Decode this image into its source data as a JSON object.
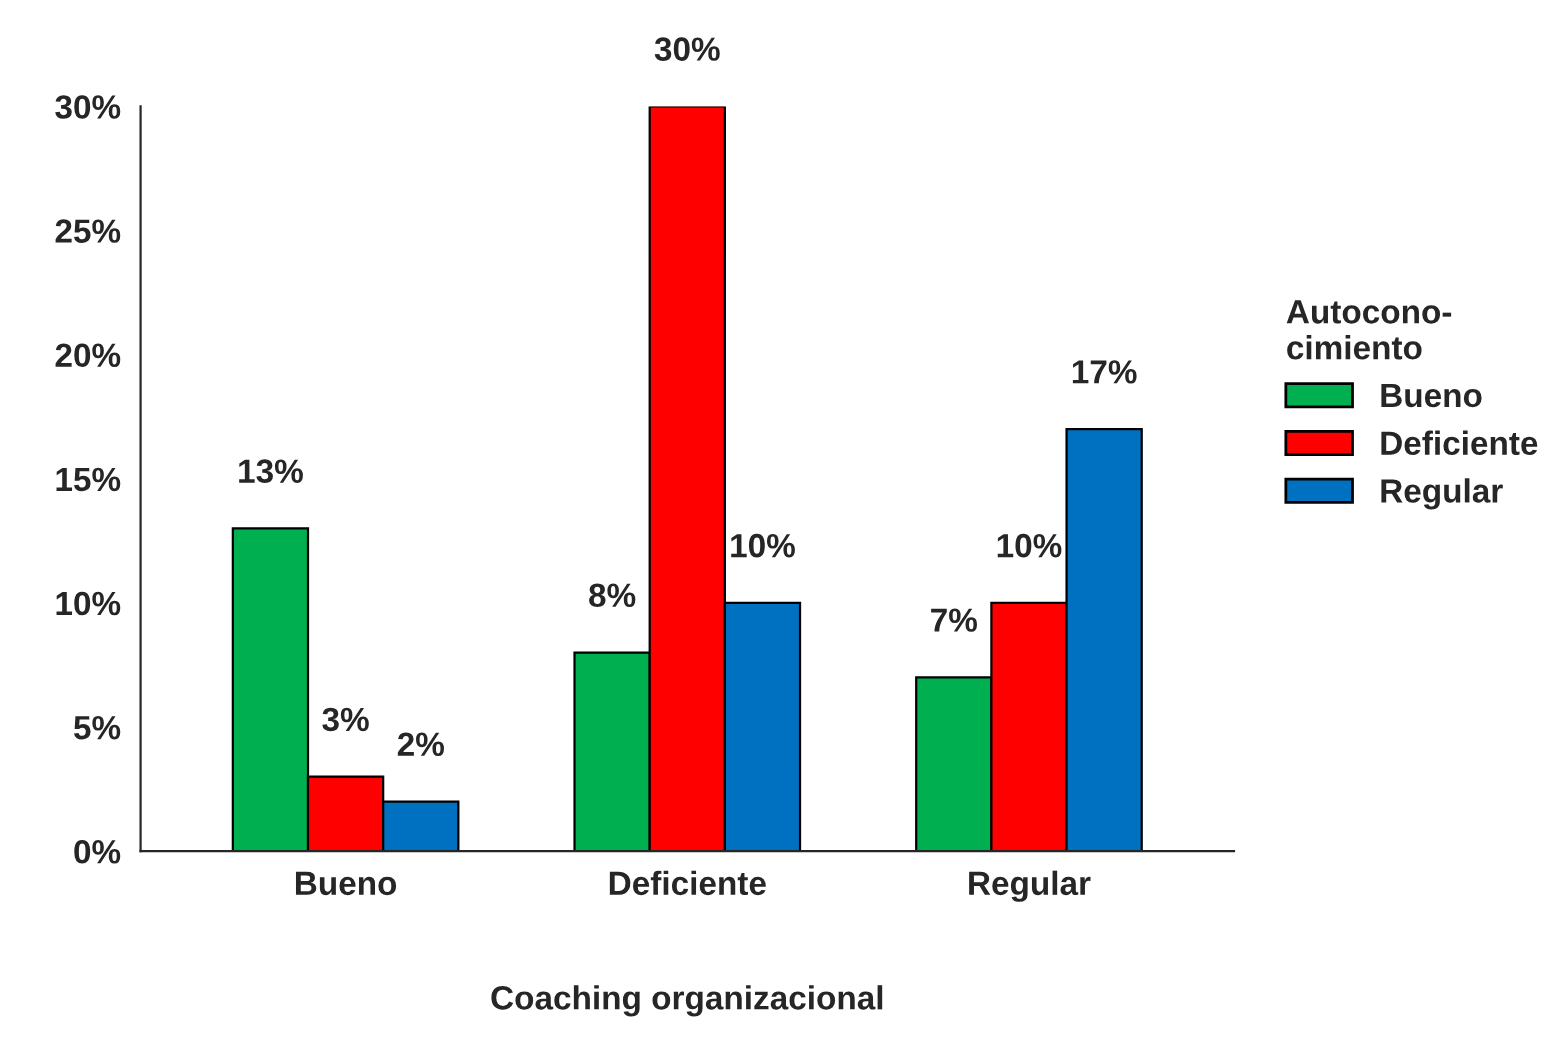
{
  "chart_data": {
    "type": "bar",
    "xlabel": "Coaching organizacional",
    "legend_title": "Autocono-\ncimiento",
    "categories": [
      "Bueno",
      "Deficiente",
      "Regular"
    ],
    "series": [
      {
        "name": "Bueno",
        "color": "#00b050",
        "values": [
          13,
          8,
          7
        ],
        "value_labels": [
          "13%",
          "8%",
          "7%"
        ]
      },
      {
        "name": "Deficiente",
        "color": "#ff0000",
        "values": [
          3,
          30,
          10
        ],
        "value_labels": [
          "3%",
          "30%",
          "10%"
        ]
      },
      {
        "name": "Regular",
        "color": "#0070c0",
        "values": [
          2,
          10,
          17
        ],
        "value_labels": [
          "2%",
          "10%",
          "17%"
        ]
      }
    ],
    "ylim": [
      0,
      30
    ],
    "yticks": [
      {
        "value": 0,
        "label": "0%"
      },
      {
        "value": 5,
        "label": "5%"
      },
      {
        "value": 10,
        "label": "10%"
      },
      {
        "value": 15,
        "label": "15%"
      },
      {
        "value": 20,
        "label": "20%"
      },
      {
        "value": 25,
        "label": "25%"
      },
      {
        "value": 30,
        "label": "30%"
      }
    ],
    "grid": false,
    "legend": "right"
  }
}
